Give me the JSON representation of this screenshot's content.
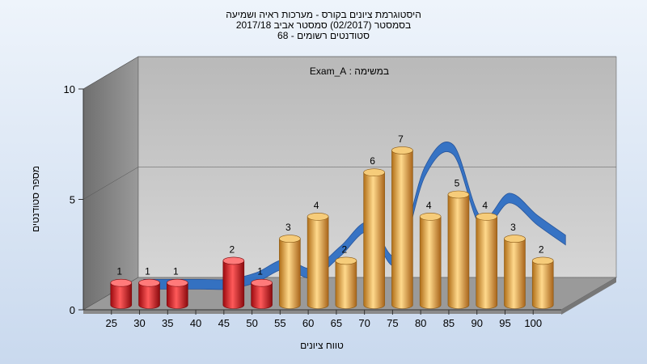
{
  "chart_data": {
    "type": "bar",
    "title_lines": [
      "היסטוגרמת ציונים בקורס - מערכות ראיה ושמיעה",
      "בסמסטר  (02/2017)  סמסטר אביב 2017/18",
      "סטודנטים רשומים - 68"
    ],
    "subtitle": "במשימה : Exam_A",
    "xlabel": "טווח ציונים",
    "ylabel": "מספר סטודנטים",
    "categories": [
      "25",
      "30",
      "35",
      "40",
      "45",
      "50",
      "55",
      "60",
      "65",
      "70",
      "75",
      "80",
      "85",
      "90",
      "95",
      "100"
    ],
    "series": [
      {
        "values": [
          1,
          1,
          1,
          null,
          2,
          1,
          3,
          4,
          2,
          6,
          7,
          4,
          5,
          4,
          3,
          2
        ],
        "value_labels": [
          "1",
          "1",
          "1",
          "",
          "2",
          "1",
          "3",
          "4",
          "2",
          "6",
          "7",
          "4",
          "5",
          "4",
          "3",
          "2"
        ]
      }
    ],
    "trend": [
      0.5,
      0.5,
      0.5,
      0.5,
      0.8,
      1.4,
      1.0,
      2.0,
      3.1,
      1.6,
      5.6,
      6.6,
      3.3,
      4.4,
      3.4,
      2.5
    ],
    "yticks": [
      "0",
      "5",
      "10"
    ],
    "ylim": [
      0,
      10
    ],
    "fail_threshold": 55,
    "colors": {
      "fail": "#e3151b",
      "pass": "#e6a840",
      "trend": "#2f6fc4",
      "wall_back": "#c3c3c3",
      "wall_side": "#7d7d7d"
    },
    "grid": true,
    "legend": "none"
  }
}
